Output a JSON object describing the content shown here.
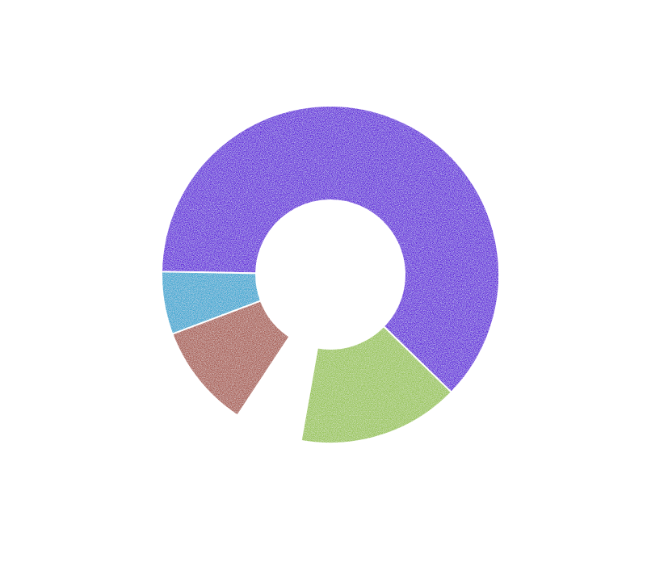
{
  "chart_data": {
    "type": "donut",
    "values": [
      62,
      15.5,
      6.5,
      10,
      6
    ],
    "colors": [
      "#5a1fd9",
      "#94c24f",
      "none",
      "#a5564c",
      "#2fa2cf"
    ],
    "start_angle": 271,
    "inner_radius_ratio": 0.44
  }
}
